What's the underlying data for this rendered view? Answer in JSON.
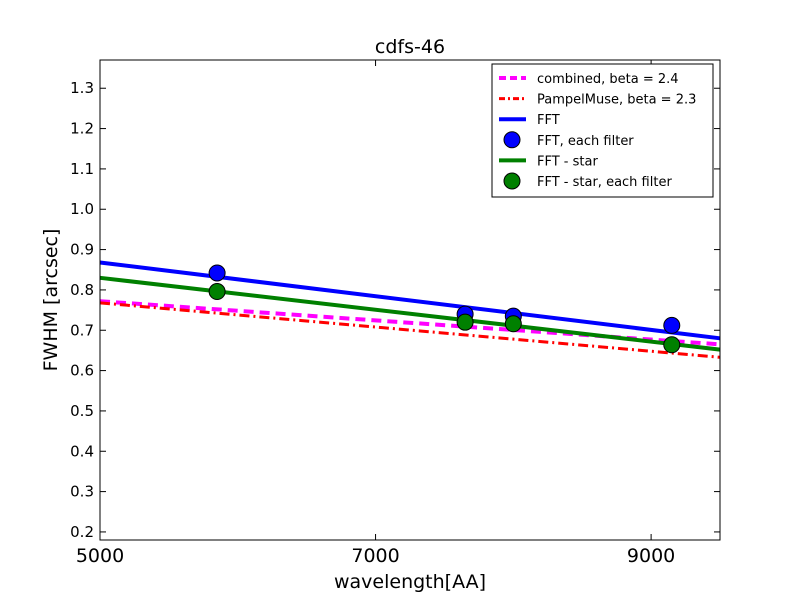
{
  "chart_data": {
    "type": "line",
    "title": "cdfs-46",
    "xlabel": "wavelength[AA]",
    "ylabel": "FWHM [arcsec]",
    "xlim": [
      5000,
      9500
    ],
    "ylim": [
      0.18,
      1.37
    ],
    "xticks": [
      5000,
      7000,
      9000
    ],
    "xtick_labels": [
      "5000",
      "7000",
      "9000"
    ],
    "yticks": [
      0.2,
      0.3,
      0.4,
      0.5,
      0.6,
      0.7,
      0.8,
      0.9,
      1.0,
      1.1,
      1.2,
      1.3
    ],
    "ytick_labels": [
      "0.2",
      "0.3",
      "0.4",
      "0.5",
      "0.6",
      "0.7",
      "0.8",
      "0.9",
      "1.0",
      "1.1",
      "1.2",
      "1.3"
    ],
    "grid": false,
    "legend_position": "top-right",
    "series": [
      {
        "name": "combined, beta = 2.4",
        "kind": "line",
        "style": "dashed",
        "color": "#ff00ff",
        "x": [
          5000,
          9500
        ],
        "y": [
          0.772,
          0.665
        ]
      },
      {
        "name": "PampelMuse, beta = 2.3",
        "kind": "line",
        "style": "dashdot",
        "color": "#ff0000",
        "x": [
          5000,
          9500
        ],
        "y": [
          0.768,
          0.633
        ]
      },
      {
        "name": "FFT",
        "kind": "line",
        "style": "solid",
        "color": "#0000ff",
        "x": [
          5000,
          9500
        ],
        "y": [
          0.868,
          0.68
        ]
      },
      {
        "name": "FFT, each filter",
        "kind": "marker",
        "color": "#0000ff",
        "x": [
          5850,
          7650,
          8000,
          9150
        ],
        "y": [
          0.842,
          0.74,
          0.735,
          0.712
        ]
      },
      {
        "name": "FFT - star",
        "kind": "line",
        "style": "solid",
        "color": "#008000",
        "x": [
          5000,
          9500
        ],
        "y": [
          0.83,
          0.652
        ]
      },
      {
        "name": "FFT - star, each filter",
        "kind": "marker",
        "color": "#008000",
        "x": [
          5850,
          7650,
          8000,
          9150
        ],
        "y": [
          0.796,
          0.72,
          0.716,
          0.664
        ]
      }
    ]
  }
}
